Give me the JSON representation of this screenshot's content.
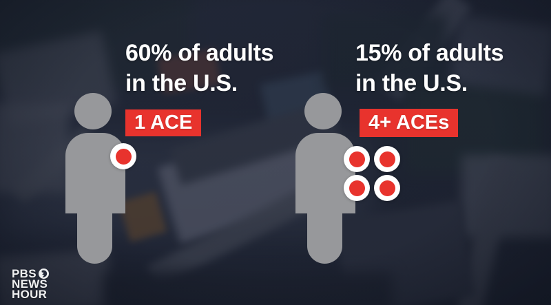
{
  "brand": {
    "line1": "PBS",
    "line2": "NEWS",
    "line3": "HOUR",
    "icon": "pbs-head-icon"
  },
  "infographic": {
    "left": {
      "stat_line1": "60% of adults",
      "stat_line2": "in the U.S.",
      "badge_label": "1 ACE",
      "ace_count": 1
    },
    "right": {
      "stat_line1": "15% of adults",
      "stat_line2": "in the U.S.",
      "badge_label": "4+ ACEs",
      "ace_count": 4
    }
  },
  "colors": {
    "accent_red": "#e8332d",
    "figure_gray": "#97989b",
    "text_white": "#ffffff"
  },
  "chart_data": {
    "type": "pictograph",
    "categories": [
      "1 ACE",
      "4+ ACEs"
    ],
    "values": [
      60,
      15
    ],
    "unit": "percent of adults in the U.S.",
    "annotations": [
      "60% of adults in the U.S. — 1 ACE",
      "15% of adults in the U.S. — 4+ ACEs"
    ],
    "legend_position": "none",
    "grid": false
  }
}
